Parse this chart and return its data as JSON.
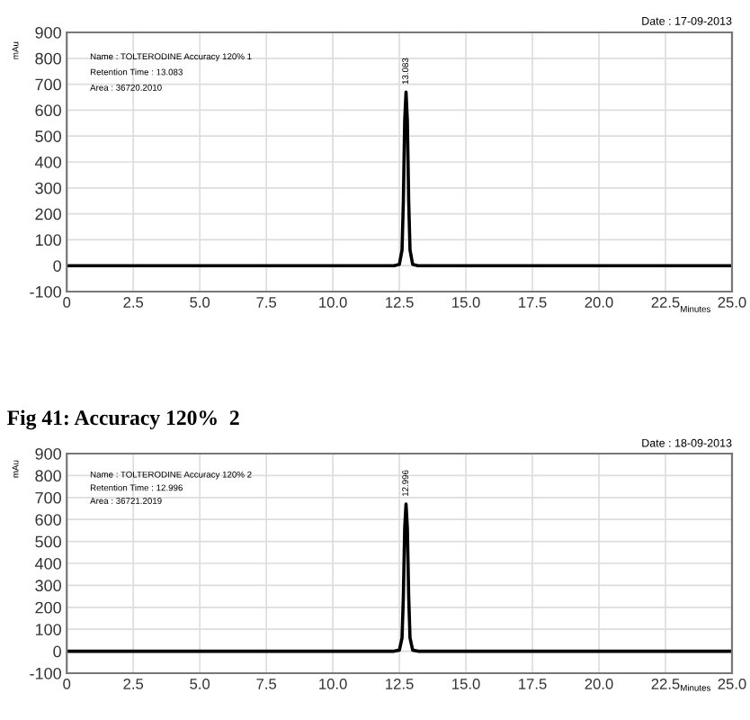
{
  "chart_data": [
    {
      "type": "line",
      "subtitle": "Date : 17-09-2013",
      "xlabel": "Minutes",
      "ylabel": "mAu",
      "series": [
        {
          "color": "#000000",
          "x": [
            0,
            12.3,
            12.5,
            12.6,
            12.65,
            12.7,
            12.75,
            12.8,
            12.85,
            12.9,
            13.0,
            13.2,
            25.0
          ],
          "values": [
            0,
            0,
            5,
            60,
            250,
            560,
            670,
            560,
            250,
            60,
            5,
            0,
            0
          ]
        }
      ],
      "annotations": [
        "Name : TOLTERODINE Accuracy 120% 1",
        "Retention Time : 13.083",
        "Area : 36720.2010",
        {
          "text": "13.083",
          "x": 12.75,
          "y": 670
        }
      ],
      "xlim": [
        0,
        25
      ],
      "ylim": [
        -100,
        900
      ],
      "xticks": [
        0,
        2.5,
        {
          "value": 5,
          "label": "5.0"
        },
        7.5,
        {
          "value": 10,
          "label": "10.0"
        },
        12.5,
        {
          "value": 15,
          "label": "15.0"
        },
        17.5,
        {
          "value": 20,
          "label": "20.0"
        },
        22.5,
        {
          "value": 25,
          "label": "25.0"
        }
      ],
      "yticks": [
        -100,
        0,
        100,
        200,
        300,
        400,
        500,
        600,
        700,
        800,
        900
      ],
      "grid": true,
      "legend": false,
      "marker": "none",
      "line_style": "solid"
    },
    {
      "type": "line",
      "title": "Fig 41: Accuracy 120%  2",
      "subtitle": "Date : 18-09-2013",
      "xlabel": "Minutes",
      "ylabel": "mAu",
      "series": [
        {
          "color": "#000000",
          "x": [
            0,
            12.3,
            12.5,
            12.6,
            12.65,
            12.7,
            12.75,
            12.8,
            12.85,
            12.9,
            13.0,
            13.2,
            25.0
          ],
          "values": [
            0,
            0,
            5,
            60,
            250,
            560,
            670,
            560,
            250,
            60,
            5,
            0,
            0
          ]
        }
      ],
      "annotations": [
        "Name : TOLTERODINE Accuracy 120% 2",
        "Retention Time : 12.996",
        "Area : 36721.2019",
        {
          "text": "12.996",
          "x": 12.75,
          "y": 670
        }
      ],
      "xlim": [
        0,
        25
      ],
      "ylim": [
        -100,
        900
      ],
      "xticks": [
        0,
        2.5,
        {
          "value": 5,
          "label": "5.0"
        },
        7.5,
        {
          "value": 10,
          "label": "10.0"
        },
        12.5,
        {
          "value": 15,
          "label": "15.0"
        },
        17.5,
        {
          "value": 20,
          "label": "20.0"
        },
        22.5,
        {
          "value": 25,
          "label": "25.0"
        }
      ],
      "yticks": [
        -100,
        0,
        100,
        200,
        300,
        400,
        500,
        600,
        700,
        800,
        900
      ],
      "grid": true,
      "legend": false,
      "marker": "none",
      "line_style": "solid"
    }
  ]
}
